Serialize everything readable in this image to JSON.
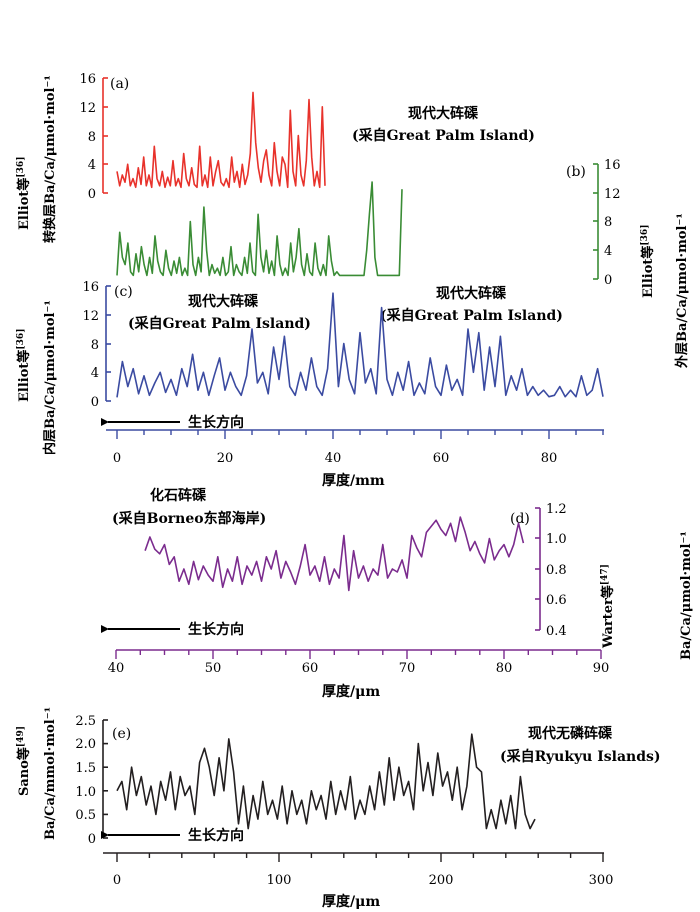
{
  "chart_data": [
    {
      "id": "a",
      "type": "line",
      "panel_label": "(a)",
      "color": "#e8322b",
      "ylabel_1": "Elliot等",
      "ylabel_ref": "[36]",
      "ylabel_2": "转换层Ba/Ca/μmol·mol⁻¹",
      "yticks": [
        "0",
        "4",
        "8",
        "12",
        "16"
      ],
      "ylim": [
        0,
        16
      ],
      "x_extent_mm": [
        0,
        39
      ],
      "annotation_1": "现代大砗磲",
      "annotation_2": "(采自Great Palm Island)",
      "series": [
        {
          "name": "Elliot等 (a)",
          "x": [
            0.0,
            0.5,
            1.0,
            1.5,
            2.0,
            2.5,
            3.0,
            3.5,
            4.0,
            4.5,
            5.0,
            5.5,
            6.0,
            6.5,
            7.0,
            7.5,
            8.0,
            8.5,
            9.0,
            9.5,
            10.0,
            10.5,
            11.0,
            11.5,
            12.0,
            12.5,
            13.0,
            13.5,
            14.0,
            14.5,
            15.0,
            15.5,
            16.0,
            16.5,
            17.0,
            17.5,
            18.0,
            18.5,
            19.0,
            19.5,
            20.0,
            20.5,
            21.0,
            21.5,
            22.0,
            22.5,
            23.0,
            23.5,
            24.0,
            24.5,
            25.0,
            25.5,
            26.0,
            26.5,
            27.0,
            27.5,
            28.0,
            28.5,
            29.0,
            29.5,
            30.0,
            30.5,
            31.0,
            31.5,
            32.0,
            32.5,
            33.0,
            33.5,
            34.0,
            34.5,
            35.0,
            35.5,
            36.0,
            36.5,
            37.0,
            37.5,
            38.0,
            38.5,
            39.0
          ],
          "values": [
            3.0,
            1.0,
            2.5,
            1.5,
            4.0,
            1.0,
            2.0,
            0.8,
            3.5,
            1.2,
            5.0,
            1.0,
            2.5,
            0.8,
            6.5,
            2.0,
            1.0,
            3.0,
            0.8,
            2.2,
            1.0,
            4.5,
            1.0,
            2.0,
            0.8,
            5.5,
            2.0,
            1.0,
            3.5,
            1.2,
            0.8,
            6.5,
            1.0,
            2.5,
            0.8,
            5.0,
            1.0,
            3.0,
            4.5,
            1.5,
            1.0,
            2.0,
            0.8,
            5.0,
            1.5,
            3.0,
            0.8,
            4.0,
            1.2,
            2.5,
            5.5,
            14.0,
            7.0,
            3.5,
            1.5,
            4.5,
            6.0,
            2.5,
            1.0,
            7.0,
            3.0,
            1.0,
            5.0,
            4.0,
            0.8,
            11.5,
            3.0,
            1.0,
            8.0,
            2.5,
            1.0,
            4.5,
            13.0,
            5.0,
            1.0,
            3.0,
            0.8,
            12.0,
            1.0
          ]
        }
      ]
    },
    {
      "id": "b",
      "type": "line",
      "panel_label": "(b)",
      "color": "#3a8c35",
      "ylabel_1": "Elliot等",
      "ylabel_ref": "[36]",
      "ylabel_2": "外层Ba/Ca/μmol·mol⁻¹",
      "yticks": [
        "0",
        "4",
        "8",
        "12",
        "16"
      ],
      "ylim": [
        0,
        16
      ],
      "x_extent_mm": [
        0,
        52.5
      ],
      "series": [
        {
          "name": "Elliot等 (b)",
          "x": [
            0.0,
            0.5,
            1.0,
            1.5,
            2.0,
            2.5,
            3.0,
            3.5,
            4.0,
            4.5,
            5.0,
            5.5,
            6.0,
            6.5,
            7.0,
            7.5,
            8.0,
            8.5,
            9.0,
            9.5,
            10.0,
            10.5,
            11.0,
            11.5,
            12.0,
            12.5,
            13.0,
            13.5,
            14.0,
            14.5,
            15.0,
            15.5,
            16.0,
            16.5,
            17.0,
            17.5,
            18.0,
            18.5,
            19.0,
            19.5,
            20.0,
            20.5,
            21.0,
            21.5,
            22.0,
            22.5,
            23.0,
            23.5,
            24.0,
            24.5,
            25.0,
            25.5,
            26.0,
            26.5,
            27.0,
            27.5,
            28.0,
            28.5,
            29.0,
            29.5,
            30.0,
            30.5,
            31.0,
            31.5,
            32.0,
            32.5,
            33.0,
            33.5,
            34.0,
            34.5,
            35.0,
            35.5,
            36.0,
            36.5,
            37.0,
            37.5,
            38.0,
            38.5,
            39.0,
            39.5,
            40.0,
            40.5,
            41.0,
            41.5,
            42.0,
            42.5,
            43.0,
            43.5,
            44.0,
            44.5,
            45.0,
            45.5,
            46.0,
            46.5,
            47.0,
            47.5,
            48.0,
            48.5,
            49.0,
            49.5,
            50.0,
            50.5,
            51.0,
            51.5,
            52.0,
            52.5
          ],
          "values": [
            0.5,
            6.5,
            3.0,
            2.0,
            5.0,
            1.0,
            0.5,
            3.5,
            1.0,
            4.5,
            2.0,
            0.5,
            3.0,
            0.8,
            6.0,
            2.5,
            1.0,
            0.5,
            4.0,
            1.5,
            0.5,
            2.5,
            0.8,
            3.0,
            0.5,
            1.5,
            0.5,
            8.0,
            2.0,
            0.5,
            3.0,
            1.0,
            10.0,
            4.0,
            0.5,
            2.0,
            0.8,
            1.5,
            0.5,
            3.0,
            0.5,
            1.0,
            4.5,
            0.5,
            2.0,
            1.0,
            0.5,
            3.0,
            0.8,
            5.0,
            1.0,
            0.5,
            9.0,
            3.0,
            1.0,
            4.0,
            0.8,
            2.5,
            0.5,
            6.0,
            2.0,
            0.5,
            1.5,
            0.5,
            5.0,
            1.0,
            3.0,
            7.0,
            2.0,
            0.5,
            3.5,
            1.0,
            0.5,
            5.0,
            1.5,
            0.5,
            2.0,
            0.5,
            6.0,
            2.5,
            0.5,
            1.0,
            0.5,
            0.5,
            0.5,
            0.5,
            0.5,
            0.5,
            0.5,
            0.5,
            0.5,
            0.5,
            4.0,
            9.0,
            13.5,
            3.0,
            0.5,
            0.5,
            0.5,
            0.5,
            0.5,
            0.5,
            0.5,
            0.5,
            0.5,
            12.5
          ]
        }
      ]
    },
    {
      "id": "c",
      "type": "line",
      "panel_label": "(c)",
      "color": "#3b4ba1",
      "ylabel_1": "Elliot等",
      "ylabel_ref": "[36]",
      "ylabel_2": "内层Ba/Ca/μmol·mol⁻¹",
      "yticks": [
        "0",
        "4",
        "8",
        "12",
        "16"
      ],
      "ylim": [
        0,
        16
      ],
      "annotation_left_1": "现代大砗磲",
      "annotation_left_2": "(采自Great Palm Island)",
      "annotation_right_1": "现代大砗磲",
      "annotation_right_2": "(采自Great Palm Island)",
      "growth_label": "生长方向",
      "xlabel": "厚度/mm",
      "xticks": [
        "0",
        "20",
        "40",
        "60",
        "80"
      ],
      "xlim": [
        -2,
        90
      ],
      "series": [
        {
          "name": "Elliot等 (c)",
          "x": [
            0.0,
            1.0,
            2.0,
            3.0,
            4.0,
            5.0,
            6.0,
            7.0,
            8.0,
            9.0,
            10.0,
            11.0,
            12.0,
            13.0,
            14.0,
            15.0,
            16.0,
            17.0,
            18.0,
            19.0,
            20.0,
            21.0,
            22.0,
            23.0,
            24.0,
            25.0,
            26.0,
            27.0,
            28.0,
            29.0,
            30.0,
            31.0,
            32.0,
            33.0,
            34.0,
            35.0,
            36.0,
            37.0,
            38.0,
            39.0,
            40.0,
            41.0,
            42.0,
            43.0,
            44.0,
            45.0,
            46.0,
            47.0,
            48.0,
            49.0,
            50.0,
            51.0,
            52.0,
            53.0,
            54.0,
            55.0,
            56.0,
            57.0,
            58.0,
            59.0,
            60.0,
            61.0,
            62.0,
            63.0,
            64.0,
            65.0,
            66.0,
            67.0,
            68.0,
            69.0,
            70.0,
            71.0,
            72.0,
            73.0,
            74.0,
            75.0,
            76.0,
            77.0,
            78.0,
            79.0,
            80.0,
            81.0,
            82.0,
            83.0,
            84.0,
            85.0,
            86.0,
            87.0,
            88.0,
            89.0,
            90.0
          ],
          "values": [
            0.5,
            5.5,
            2.0,
            4.5,
            1.0,
            3.5,
            0.8,
            2.5,
            4.0,
            1.2,
            3.0,
            0.8,
            4.5,
            2.0,
            6.5,
            1.5,
            4.0,
            0.8,
            3.5,
            6.0,
            1.5,
            4.0,
            2.0,
            0.8,
            3.5,
            10.0,
            2.5,
            4.0,
            1.0,
            7.5,
            3.0,
            9.0,
            2.0,
            0.8,
            4.0,
            1.5,
            6.0,
            2.0,
            0.8,
            4.5,
            15.0,
            2.0,
            8.0,
            3.0,
            1.0,
            9.5,
            2.5,
            4.5,
            1.0,
            13.0,
            3.0,
            0.8,
            4.0,
            1.5,
            5.5,
            0.8,
            2.5,
            1.0,
            6.0,
            2.0,
            0.8,
            5.0,
            1.5,
            3.0,
            0.8,
            10.0,
            4.0,
            9.5,
            1.5,
            7.5,
            2.0,
            9.0,
            0.8,
            3.5,
            1.5,
            4.5,
            0.8,
            2.0,
            0.8,
            1.5,
            0.6,
            0.8,
            2.0,
            0.6,
            1.5,
            0.6,
            3.5,
            0.8,
            1.5,
            4.5,
            0.6
          ]
        }
      ]
    },
    {
      "id": "d",
      "type": "line",
      "panel_label": "(d)",
      "color": "#7b2c8e",
      "ylabel_1": "Warter等",
      "ylabel_ref": "[47]",
      "ylabel_2": "Ba/Ca/μmol·mol⁻¹",
      "yticks": [
        "0.4",
        "0.6",
        "0.8",
        "1.0",
        "1.2"
      ],
      "ylim": [
        0.4,
        1.2
      ],
      "annotation_1": "化石砗磲",
      "annotation_2": "(采自Borneo东部海岸)",
      "growth_label": "生长方向",
      "xlabel": "厚度/μm",
      "xticks": [
        "40",
        "50",
        "60",
        "70",
        "80",
        "90"
      ],
      "xlim": [
        40,
        90
      ],
      "series": [
        {
          "name": "Warter等",
          "x": [
            43.0,
            43.5,
            44.0,
            44.5,
            45.0,
            45.5,
            46.0,
            46.5,
            47.0,
            47.5,
            48.0,
            48.5,
            49.0,
            49.5,
            50.0,
            50.5,
            51.0,
            51.5,
            52.0,
            52.5,
            53.0,
            53.5,
            54.0,
            54.5,
            55.0,
            55.5,
            56.0,
            56.5,
            57.0,
            57.5,
            58.0,
            58.5,
            59.0,
            59.5,
            60.0,
            60.5,
            61.0,
            61.5,
            62.0,
            62.5,
            63.0,
            63.5,
            64.0,
            64.5,
            65.0,
            65.5,
            66.0,
            66.5,
            67.0,
            67.5,
            68.0,
            68.5,
            69.0,
            69.5,
            70.0,
            70.5,
            71.0,
            71.5,
            72.0,
            72.5,
            73.0,
            73.5,
            74.0,
            74.5,
            75.0,
            75.5,
            76.0,
            76.5,
            77.0,
            77.5,
            78.0,
            78.5,
            79.0,
            79.5,
            80.0,
            80.5,
            81.0,
            81.5,
            82.0
          ],
          "values": [
            0.92,
            1.01,
            0.93,
            0.9,
            0.96,
            0.83,
            0.88,
            0.72,
            0.8,
            0.7,
            0.85,
            0.73,
            0.82,
            0.76,
            0.72,
            0.88,
            0.68,
            0.8,
            0.72,
            0.88,
            0.7,
            0.82,
            0.76,
            0.85,
            0.72,
            0.88,
            0.8,
            0.92,
            0.74,
            0.85,
            0.78,
            0.7,
            0.82,
            0.96,
            0.76,
            0.82,
            0.72,
            0.88,
            0.7,
            0.8,
            0.74,
            1.02,
            0.66,
            0.92,
            0.74,
            0.82,
            0.72,
            0.8,
            0.76,
            0.96,
            0.74,
            0.8,
            0.78,
            0.86,
            0.74,
            1.02,
            0.94,
            0.88,
            1.04,
            1.08,
            1.12,
            1.06,
            1.02,
            1.1,
            0.98,
            1.14,
            1.04,
            0.92,
            0.98,
            0.9,
            0.84,
            1.0,
            0.86,
            0.92,
            0.96,
            0.88,
            0.96,
            1.1,
            0.97
          ]
        }
      ]
    },
    {
      "id": "e",
      "type": "line",
      "panel_label": "(e)",
      "color": "#231f20",
      "ylabel_1": "Sano等",
      "ylabel_ref": "[49]",
      "ylabel_2": "Ba/Ca/mmol·mol⁻¹",
      "yticks": [
        "0",
        "0.5",
        "1.0",
        "1.5",
        "2.0",
        "2.5"
      ],
      "ylim": [
        0,
        2.5
      ],
      "annotation_1": "现代无磷砗磲",
      "annotation_2": "(采自Ryukyu Islands)",
      "growth_label": "生长方向",
      "xlabel": "厚度/μm",
      "xticks": [
        "0",
        "100",
        "200",
        "300"
      ],
      "xlim": [
        0,
        300
      ],
      "series": [
        {
          "name": "Sano等",
          "x": [
            0,
            3,
            6,
            9,
            12,
            15,
            18,
            21,
            24,
            27,
            30,
            33,
            36,
            39,
            42,
            45,
            48,
            51,
            54,
            57,
            60,
            63,
            66,
            69,
            72,
            75,
            78,
            81,
            84,
            87,
            90,
            93,
            96,
            99,
            102,
            105,
            108,
            111,
            114,
            117,
            120,
            123,
            126,
            129,
            132,
            135,
            138,
            141,
            144,
            147,
            150,
            153,
            156,
            159,
            162,
            165,
            168,
            171,
            174,
            177,
            180,
            183,
            186,
            189,
            192,
            195,
            198,
            201,
            204,
            207,
            210,
            213,
            216,
            219,
            222,
            225,
            228,
            231,
            234,
            237,
            240,
            243,
            246,
            249,
            252,
            255,
            258
          ],
          "values": [
            1.0,
            1.2,
            0.6,
            1.5,
            0.9,
            1.3,
            0.7,
            1.1,
            0.5,
            1.2,
            0.8,
            1.4,
            0.6,
            1.3,
            0.9,
            1.1,
            0.5,
            1.6,
            1.9,
            1.5,
            0.9,
            1.7,
            1.0,
            2.1,
            1.4,
            0.3,
            1.1,
            0.2,
            0.9,
            0.4,
            1.2,
            0.5,
            0.8,
            0.4,
            1.1,
            0.3,
            1.0,
            0.5,
            0.8,
            0.3,
            1.0,
            0.6,
            0.9,
            0.4,
            1.2,
            0.5,
            1.0,
            0.6,
            1.3,
            0.4,
            0.8,
            0.5,
            1.1,
            0.6,
            1.4,
            0.7,
            1.7,
            0.8,
            1.5,
            0.9,
            1.2,
            0.6,
            2.0,
            1.0,
            1.6,
            0.9,
            1.8,
            1.1,
            1.4,
            0.8,
            1.5,
            0.6,
            1.1,
            2.2,
            1.5,
            1.4,
            0.2,
            0.6,
            0.2,
            0.8,
            0.3,
            0.9,
            0.2,
            1.3,
            0.5,
            0.2,
            0.4
          ]
        }
      ]
    }
  ]
}
